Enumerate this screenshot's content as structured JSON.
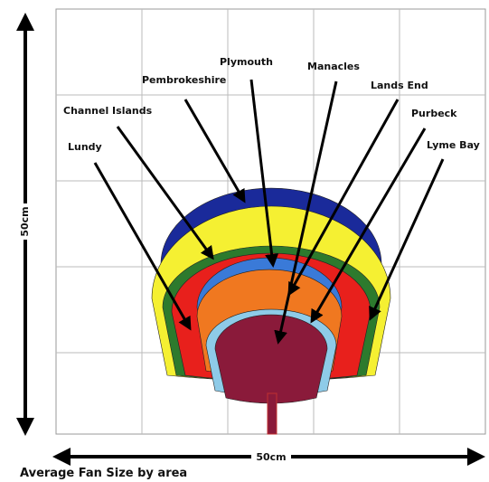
{
  "title": "Average Fan Size by area",
  "axes": {
    "vertical": "50cm",
    "horizontal": "50cm"
  },
  "labels": [
    "Lundy",
    "Channel Islands",
    "Pembrokeshire",
    "Plymouth",
    "Manacles",
    "Lands End",
    "Purbeck",
    "Lyme Bay"
  ]
}
